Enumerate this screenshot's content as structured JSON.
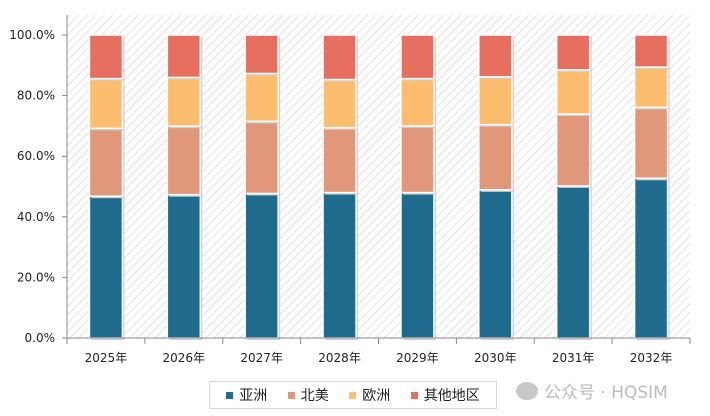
{
  "chart_data": {
    "type": "bar",
    "stacked": true,
    "categories": [
      "2025年",
      "2026年",
      "2027年",
      "2028年",
      "2029年",
      "2030年",
      "2031年",
      "2032年"
    ],
    "series": [
      {
        "name": "亚洲",
        "color": "#1f6b8e",
        "values": [
          46.8,
          47.3,
          47.7,
          48.0,
          48.0,
          48.9,
          50.2,
          52.7
        ]
      },
      {
        "name": "北美",
        "color": "#e0977a",
        "values": [
          22.4,
          22.6,
          23.8,
          21.4,
          22.0,
          21.5,
          23.7,
          23.4
        ]
      },
      {
        "name": "欧洲",
        "color": "#fdbd6f",
        "values": [
          16.4,
          16.1,
          15.8,
          15.9,
          15.6,
          15.8,
          14.6,
          13.3
        ]
      },
      {
        "name": "其他地区",
        "color": "#e76f5f",
        "values": [
          14.4,
          14.0,
          12.7,
          14.7,
          14.4,
          13.8,
          11.5,
          10.6
        ]
      }
    ],
    "yticks": [
      "0.0%",
      "20.0%",
      "40.0%",
      "60.0%",
      "80.0%",
      "100.0%"
    ],
    "ylim": [
      0,
      100
    ],
    "legend_position": "bottom",
    "grid": false
  },
  "watermark": "公众号 · HQSIM"
}
